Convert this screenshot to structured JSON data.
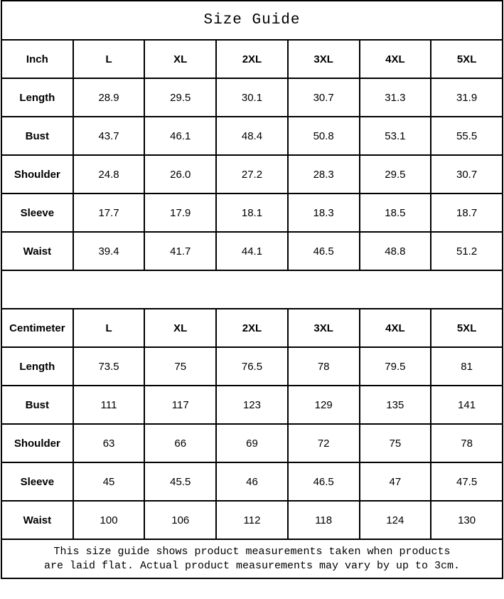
{
  "title": "Size Guide",
  "footer": {
    "line1": "This size guide shows product measurements taken when products",
    "line2": "are laid flat. Actual product measurements may vary by up to 3cm."
  },
  "colors": {
    "border": "#000000",
    "text": "#000000",
    "background": "#ffffff"
  },
  "chart_data": [
    {
      "type": "table",
      "title": "Size Guide (Inch)",
      "unit": "Inch",
      "columns": [
        "Inch",
        "L",
        "XL",
        "2XL",
        "3XL",
        "4XL",
        "5XL"
      ],
      "rows": [
        [
          "Length",
          "28.9",
          "29.5",
          "30.1",
          "30.7",
          "31.3",
          "31.9"
        ],
        [
          "Bust",
          "43.7",
          "46.1",
          "48.4",
          "50.8",
          "53.1",
          "55.5"
        ],
        [
          "Shoulder",
          "24.8",
          "26.0",
          "27.2",
          "28.3",
          "29.5",
          "30.7"
        ],
        [
          "Sleeve",
          "17.7",
          "17.9",
          "18.1",
          "18.3",
          "18.5",
          "18.7"
        ],
        [
          "Waist",
          "39.4",
          "41.7",
          "44.1",
          "46.5",
          "48.8",
          "51.2"
        ]
      ]
    },
    {
      "type": "table",
      "title": "Size Guide (Centimeter)",
      "unit": "Centimeter",
      "columns": [
        "Centimeter",
        "L",
        "XL",
        "2XL",
        "3XL",
        "4XL",
        "5XL"
      ],
      "rows": [
        [
          "Length",
          "73.5",
          "75",
          "76.5",
          "78",
          "79.5",
          "81"
        ],
        [
          "Bust",
          "111",
          "117",
          "123",
          "129",
          "135",
          "141"
        ],
        [
          "Shoulder",
          "63",
          "66",
          "69",
          "72",
          "75",
          "78"
        ],
        [
          "Sleeve",
          "45",
          "45.5",
          "46",
          "46.5",
          "47",
          "47.5"
        ],
        [
          "Waist",
          "100",
          "106",
          "112",
          "118",
          "124",
          "130"
        ]
      ]
    }
  ]
}
